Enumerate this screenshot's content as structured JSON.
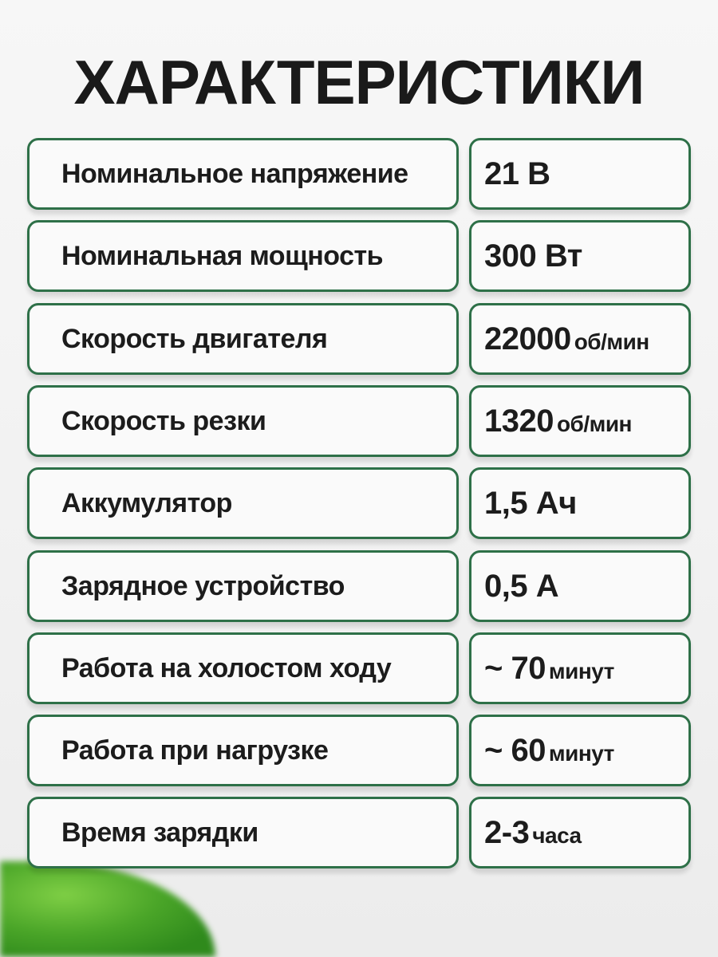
{
  "title": "ХАРАКТЕРИСТИКИ",
  "accent_color": "#2e7048",
  "specs": [
    {
      "label": "Номинальное напряжение",
      "value": "21 В",
      "unit": ""
    },
    {
      "label": "Номинальная мощность",
      "value": "300 Вт",
      "unit": ""
    },
    {
      "label": "Скорость двигателя",
      "value": "22000",
      "unit": "об/мин"
    },
    {
      "label": "Скорость резки",
      "value": "1320",
      "unit": "об/мин"
    },
    {
      "label": "Аккумулятор",
      "value": "1,5 Ач",
      "unit": ""
    },
    {
      "label": "Зарядное устройство",
      "value": "0,5 А",
      "unit": ""
    },
    {
      "label": "Работа на холостом ходу",
      "value": "~ 70",
      "unit": "минут"
    },
    {
      "label": "Работа при нагрузке",
      "value": "~ 60",
      "unit": "минут"
    },
    {
      "label": "Время зарядки",
      "value": "2-3",
      "unit": "часа"
    }
  ]
}
